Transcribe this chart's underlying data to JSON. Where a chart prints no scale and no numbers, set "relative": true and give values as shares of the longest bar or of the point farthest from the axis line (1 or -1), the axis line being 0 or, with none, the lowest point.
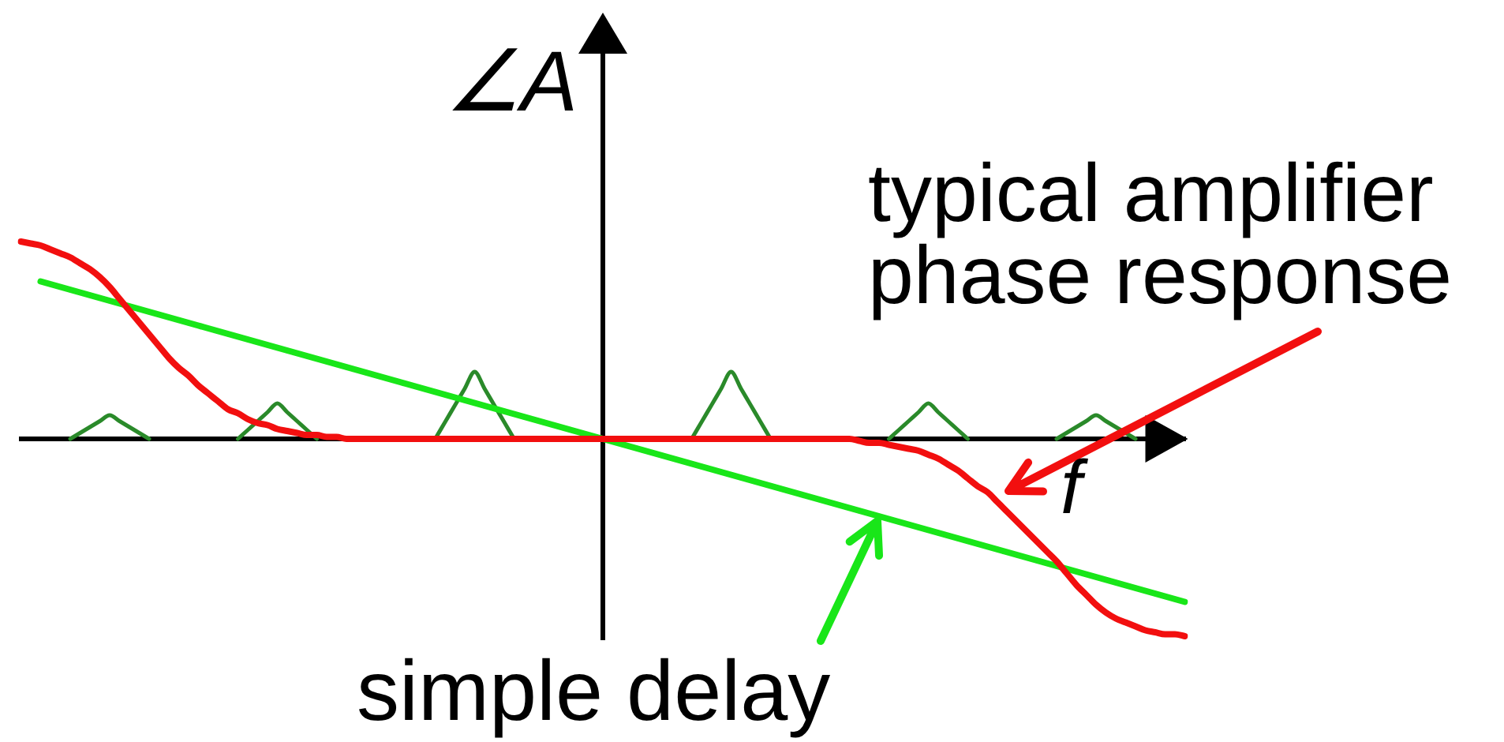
{
  "chart_data": {
    "type": "line",
    "xlabel": "f",
    "ylabel": "∠A",
    "relative": true,
    "annotations": [
      "typical amplifier phase response",
      "simple delay"
    ],
    "categories": [
      null,
      null,
      null,
      null,
      null,
      null,
      null,
      null,
      null,
      null,
      null,
      null,
      null,
      null,
      null,
      null,
      null,
      null,
      null,
      null,
      null,
      null,
      null,
      null,
      null,
      null,
      null,
      null,
      null,
      null,
      null,
      null,
      null,
      null,
      null,
      null,
      null,
      null,
      null,
      null,
      null,
      null,
      null,
      null,
      null,
      null,
      null,
      null,
      null,
      null,
      null,
      null,
      null,
      null,
      null,
      null,
      null,
      null,
      null,
      null,
      null,
      null,
      null,
      null,
      null,
      null,
      null,
      null,
      null,
      null,
      null,
      null,
      null,
      null,
      null,
      null,
      null,
      null,
      null,
      null,
      null,
      null,
      null,
      null,
      null,
      null,
      null,
      null,
      null,
      null,
      null,
      null,
      null,
      null,
      null,
      null,
      null,
      null,
      null,
      null,
      null,
      null,
      null,
      null,
      null,
      null,
      null,
      null,
      null,
      null,
      null,
      null,
      null,
      null,
      null,
      null,
      null,
      null,
      null
    ],
    "series": [
      {
        "color": "#f20f0f",
        "values": [
          1,
          0.99,
          0.98,
          0.96,
          0.94,
          0.92,
          0.89,
          0.86,
          0.82,
          0.77,
          0.71,
          0.65,
          0.59,
          0.53,
          0.47,
          0.41,
          0.36,
          0.32,
          0.27,
          0.23,
          0.19,
          0.15,
          0.13,
          0.1,
          0.08,
          0.07,
          0.05,
          0.04,
          0.03,
          0.02,
          0.02,
          0.01,
          0.01,
          0,
          0,
          0,
          0,
          0,
          0,
          0,
          0,
          0,
          0,
          0,
          0,
          0,
          0,
          0,
          0,
          0,
          0,
          0,
          0,
          0,
          0,
          0,
          0,
          0,
          0,
          0,
          0,
          0,
          0,
          0,
          0,
          0,
          0,
          0,
          0,
          0,
          0,
          0,
          0,
          0,
          0,
          0,
          0,
          0,
          0,
          0,
          0,
          0,
          0,
          0,
          0,
          -0.01,
          -0.02,
          -0.02,
          -0.03,
          -0.04,
          -0.05,
          -0.06,
          -0.08,
          -0.1,
          -0.13,
          -0.16,
          -0.2,
          -0.24,
          -0.27,
          -0.32,
          -0.37,
          -0.42,
          -0.47,
          -0.52,
          -0.57,
          -0.62,
          -0.68,
          -0.74,
          -0.79,
          -0.84,
          -0.88,
          -0.91,
          -0.93,
          -0.95,
          -0.97,
          -0.98,
          -0.99,
          -0.99,
          -1
        ]
      },
      {
        "color": "#19e619",
        "values": [
          null,
          null,
          0.798,
          0.784,
          0.77,
          0.756,
          0.742,
          0.728,
          0.714,
          0.7,
          0.686,
          0.672,
          0.658,
          0.644,
          0.63,
          0.616,
          0.602,
          0.588,
          0.574,
          0.56,
          0.546,
          0.532,
          0.518,
          0.504,
          0.49,
          0.476,
          0.462,
          0.448,
          0.434,
          0.42,
          0.406,
          0.392,
          0.378,
          0.364,
          0.35,
          0.336,
          0.322,
          0.308,
          0.294,
          0.28,
          0.266,
          0.252,
          0.238,
          0.224,
          0.21,
          0.196,
          0.182,
          0.168,
          0.154,
          0.14,
          0.126,
          0.112,
          0.098,
          0.084,
          0.07,
          0.056,
          0.042,
          0.028,
          0.014,
          0,
          -0.014,
          -0.028,
          -0.042,
          -0.056,
          -0.07,
          -0.084,
          -0.098,
          -0.112,
          -0.126,
          -0.14,
          -0.154,
          -0.168,
          -0.182,
          -0.196,
          -0.21,
          -0.224,
          -0.238,
          -0.252,
          -0.266,
          -0.28,
          -0.294,
          -0.308,
          -0.322,
          -0.336,
          -0.35,
          -0.364,
          -0.378,
          -0.392,
          -0.406,
          -0.42,
          -0.434,
          -0.448,
          -0.462,
          -0.476,
          -0.49,
          -0.504,
          -0.518,
          -0.532,
          -0.546,
          -0.56,
          -0.574,
          -0.588,
          -0.602,
          -0.616,
          -0.63,
          -0.644,
          -0.658,
          -0.672,
          -0.686,
          -0.7,
          -0.714,
          -0.728,
          -0.742,
          -0.756,
          -0.77,
          -0.784,
          -0.798,
          -0.812,
          -0.826
        ]
      },
      {
        "color": "#2a8a2a",
        "values": [
          null,
          null,
          null,
          null,
          null,
          0,
          0.03,
          0.06,
          0.09,
          0.12,
          0.09,
          0.06,
          0.03,
          0,
          null,
          null,
          null,
          null,
          null,
          null,
          null,
          null,
          0,
          0.045,
          0.09,
          0.135,
          0.18,
          0.135,
          0.09,
          0.045,
          0,
          null,
          null,
          null,
          null,
          null,
          null,
          null,
          null,
          null,
          null,
          null,
          0,
          0.085,
          0.17,
          0.255,
          0.34,
          0.255,
          0.17,
          0.085,
          0,
          null,
          null,
          null,
          null,
          null,
          null,
          null,
          null,
          null,
          null,
          null,
          null,
          null,
          null,
          null,
          null,
          null,
          0,
          0.085,
          0.17,
          0.255,
          0.34,
          0.255,
          0.17,
          0.085,
          0,
          null,
          null,
          null,
          null,
          null,
          null,
          null,
          null,
          null,
          null,
          null,
          0,
          0.045,
          0.09,
          0.135,
          0.18,
          0.135,
          0.09,
          0.045,
          0,
          null,
          null,
          null,
          null,
          null,
          null,
          null,
          null,
          0,
          0.03,
          0.06,
          0.09,
          0.12,
          0.09,
          0.06,
          0.03,
          0,
          null,
          null,
          null,
          null,
          null
        ]
      }
    ],
    "grid": false,
    "legend": false,
    "marker": "none",
    "line_style": "solid"
  }
}
